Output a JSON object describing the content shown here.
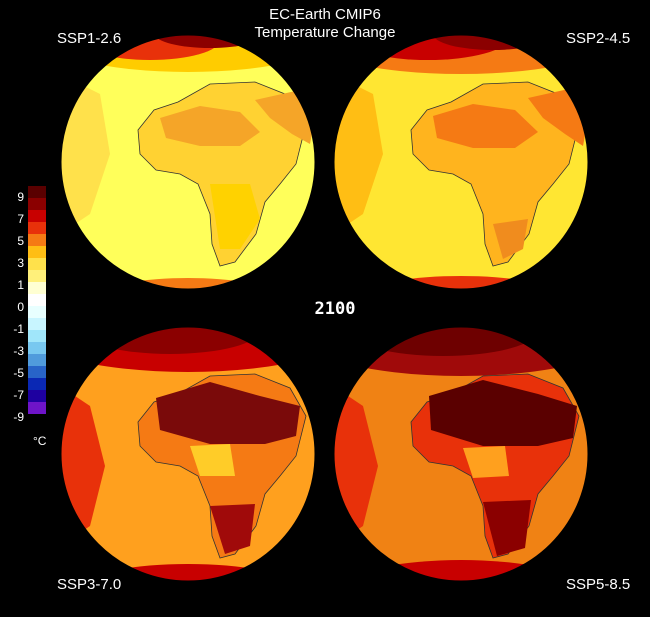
{
  "title": {
    "line1": "EC-Earth CMIP6",
    "line2": "Temperature Change"
  },
  "year": "2100",
  "unit": "°C",
  "scenarios": [
    {
      "id": "ssp126",
      "label": "SSP1-2.6"
    },
    {
      "id": "ssp245",
      "label": "SSP2-4.5"
    },
    {
      "id": "ssp370",
      "label": "SSP3-7.0"
    },
    {
      "id": "ssp585",
      "label": "SSP5-8.5"
    }
  ],
  "legend": {
    "ticks": [
      "9",
      "7",
      "5",
      "3",
      "1",
      "0",
      "-1",
      "-3",
      "-5",
      "-7",
      "-9"
    ],
    "colors": [
      "#5a0000",
      "#8b0000",
      "#c80000",
      "#e8310a",
      "#f57a14",
      "#ffbe14",
      "#ffe14b",
      "#fff07a",
      "#ffffd2",
      "#ffffff",
      "#e8ffff",
      "#c8f5ff",
      "#a0e6fa",
      "#78c8f0",
      "#509bdc",
      "#2864c8",
      "#0a28b4",
      "#1e00a0",
      "#6e14c8"
    ]
  },
  "colors": {
    "background": "#000000",
    "ocean_low": "#ffff55",
    "land_low": "#ffd200",
    "warm": "#ff9a14",
    "hot": "#e0320a",
    "extreme": "#6e0000"
  }
}
